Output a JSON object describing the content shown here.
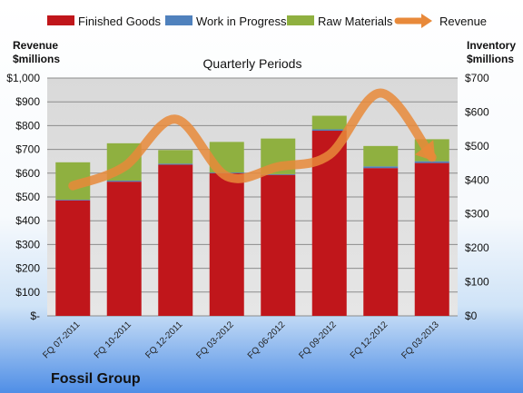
{
  "chart_data": {
    "type": "bar",
    "subtitle": "Quarterly Periods",
    "footer_label": "Fossil Group",
    "left_axis": {
      "title_lines": [
        "Revenue",
        "$millions"
      ],
      "min": 0,
      "max": 1000,
      "step": 100,
      "tick_labels": [
        "$-",
        "$100",
        "$200",
        "$300",
        "$400",
        "$500",
        "$600",
        "$700",
        "$800",
        "$900",
        "$1,000"
      ]
    },
    "right_axis": {
      "title_lines": [
        "Inventory",
        "$millions"
      ],
      "min": 0,
      "max": 700,
      "step": 100,
      "tick_labels": [
        "$0",
        "$100",
        "$200",
        "$300",
        "$400",
        "$500",
        "$600",
        "$700"
      ]
    },
    "categories": [
      "FQ 07-2011",
      "FQ 10-2011",
      "FQ 12-2011",
      "FQ 03-2012",
      "FQ 06-2012",
      "FQ 09-2012",
      "FQ 12-2012",
      "FQ 03-2013"
    ],
    "series": [
      {
        "name": "Finished Goods",
        "kind": "stacked-bar",
        "axis": "right",
        "color": "#c0161b",
        "values": [
          340,
          395,
          445,
          420,
          415,
          545,
          435,
          450
        ]
      },
      {
        "name": "Work in Progress",
        "kind": "stacked-bar",
        "axis": "right",
        "color": "#4f81bd",
        "values": [
          2,
          3,
          3,
          2,
          2,
          4,
          5,
          5
        ]
      },
      {
        "name": "Raw Materials",
        "kind": "stacked-bar",
        "axis": "right",
        "color": "#8fb040",
        "values": [
          110,
          110,
          40,
          90,
          105,
          40,
          60,
          65
        ]
      },
      {
        "name": "Revenue",
        "kind": "line",
        "axis": "left",
        "color": "#e8893a",
        "values": [
          547,
          627,
          827,
          587,
          627,
          677,
          937,
          667
        ]
      }
    ],
    "grid": true,
    "legend_position": "top"
  }
}
